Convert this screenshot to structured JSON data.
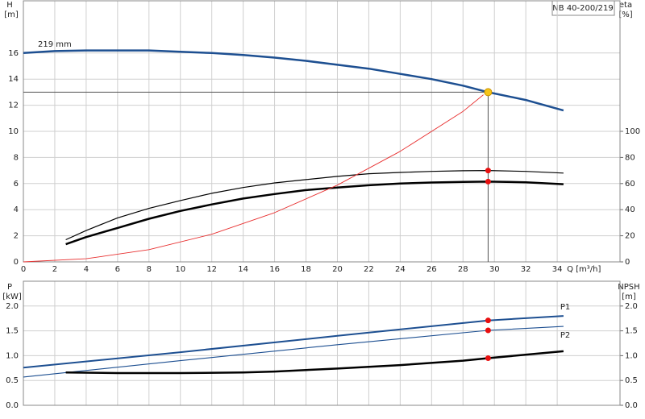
{
  "model": "NB 40-200/219",
  "chart_data": [
    {
      "type": "line",
      "xlabel": "Q [m³/h]",
      "ylabel": "H",
      "yunit": "[m]",
      "y2label": "eta",
      "y2unit": "[%]",
      "xlim": [
        0,
        38
      ],
      "xticks": [
        0,
        2,
        4,
        6,
        8,
        10,
        12,
        14,
        16,
        18,
        20,
        22,
        24,
        26,
        28,
        30,
        32,
        34
      ],
      "ylim": [
        0,
        20
      ],
      "yticks": [
        0,
        2,
        4,
        6,
        8,
        10,
        12,
        14,
        16
      ],
      "y2lim": [
        0,
        200
      ],
      "y2ticks": [
        0,
        20,
        40,
        60,
        80,
        100
      ],
      "grid": true,
      "series": [
        {
          "name": "219 mm",
          "label_at": "start",
          "label_side": "above",
          "color": "#1d4f91",
          "width": 2.5,
          "x": [
            0,
            2,
            4,
            6,
            8,
            10,
            12,
            14,
            16,
            18,
            20,
            22,
            24,
            26,
            28,
            29.6,
            32,
            34.4
          ],
          "values": [
            16.0,
            16.15,
            16.2,
            16.2,
            16.2,
            16.1,
            16.0,
            15.85,
            15.65,
            15.4,
            15.1,
            14.8,
            14.4,
            14.0,
            13.5,
            13.0,
            12.4,
            11.6
          ]
        },
        {
          "axis": "y2",
          "color": "#000000",
          "width": 1.2,
          "x": [
            2.7,
            4,
            6,
            8,
            10,
            12,
            14,
            16,
            18,
            20,
            22,
            24,
            26,
            28,
            29.6,
            32,
            34.4
          ],
          "values": [
            17,
            24,
            33.7,
            41,
            47,
            52.5,
            57,
            60.5,
            63,
            65.5,
            67.5,
            68.5,
            69.3,
            69.8,
            70,
            69.3,
            68
          ]
        },
        {
          "axis": "y2",
          "color": "#000000",
          "width": 2.5,
          "x": [
            2.7,
            4,
            6,
            8,
            10,
            12,
            14,
            16,
            18,
            20,
            22,
            24,
            26,
            28,
            29.6,
            32,
            34.4
          ],
          "values": [
            13.5,
            19,
            26,
            33,
            39,
            44,
            48.5,
            52,
            55,
            57,
            58.7,
            60,
            60.8,
            61.3,
            61.5,
            61,
            59.5
          ]
        },
        {
          "color": "#e83030",
          "width": 0.9,
          "x": [
            0,
            4,
            8,
            12,
            16,
            20,
            24,
            28,
            29.3
          ],
          "values": [
            0,
            0.24,
            0.94,
            2.12,
            3.77,
            5.88,
            8.47,
            11.53,
            12.8
          ]
        }
      ],
      "operating_point": {
        "x": 29.6,
        "y": 13.0,
        "color": "#f5c518"
      },
      "markers": [
        {
          "x": 29.6,
          "y": 70,
          "axis": "y2",
          "color": "#e81010"
        },
        {
          "x": 29.6,
          "y": 61.5,
          "axis": "y2",
          "color": "#e81010"
        }
      ]
    },
    {
      "type": "line",
      "ylabel": "P",
      "yunit": "[kW]",
      "y2label": "NPSH",
      "y2unit": "[m]",
      "ylim": [
        0,
        2.5
      ],
      "yticks": [
        {
          "value": 0,
          "label": "0.0"
        },
        0.5,
        {
          "value": 1,
          "label": "1.0"
        },
        1.5,
        {
          "value": 2,
          "label": "2.0"
        }
      ],
      "y2lim": [
        0,
        2.5
      ],
      "y2ticks": [
        {
          "value": 0,
          "label": "0.0"
        },
        0.5,
        {
          "value": 1,
          "label": "1.0"
        },
        1.5,
        {
          "value": 2,
          "label": "2.0"
        }
      ],
      "grid": true,
      "series": [
        {
          "name": "P1",
          "label_at": "end",
          "label_side": "above",
          "color": "#1d4f91",
          "width": 2,
          "x": [
            0,
            10,
            20,
            29.6,
            34.4
          ],
          "values": [
            0.76,
            1.07,
            1.4,
            1.71,
            1.8
          ]
        },
        {
          "name": "P2",
          "label_at": "end",
          "label_side": "below",
          "color": "#1d4f91",
          "width": 1.1,
          "x": [
            0,
            10,
            20,
            29.6,
            34.4
          ],
          "values": [
            0.57,
            0.9,
            1.22,
            1.51,
            1.59
          ]
        },
        {
          "axis": "y2",
          "color": "#000000",
          "width": 2.5,
          "x": [
            2.7,
            6,
            10,
            14,
            16,
            20,
            24,
            28,
            29.6,
            34.4
          ],
          "values": [
            0.66,
            0.65,
            0.65,
            0.66,
            0.68,
            0.74,
            0.81,
            0.9,
            0.95,
            1.09
          ]
        }
      ],
      "markers": [
        {
          "x": 29.6,
          "y": 1.71,
          "color": "#e81010"
        },
        {
          "x": 29.6,
          "y": 1.51,
          "color": "#e81010"
        },
        {
          "x": 29.6,
          "y": 0.95,
          "axis": "y2",
          "color": "#e81010"
        }
      ]
    }
  ]
}
